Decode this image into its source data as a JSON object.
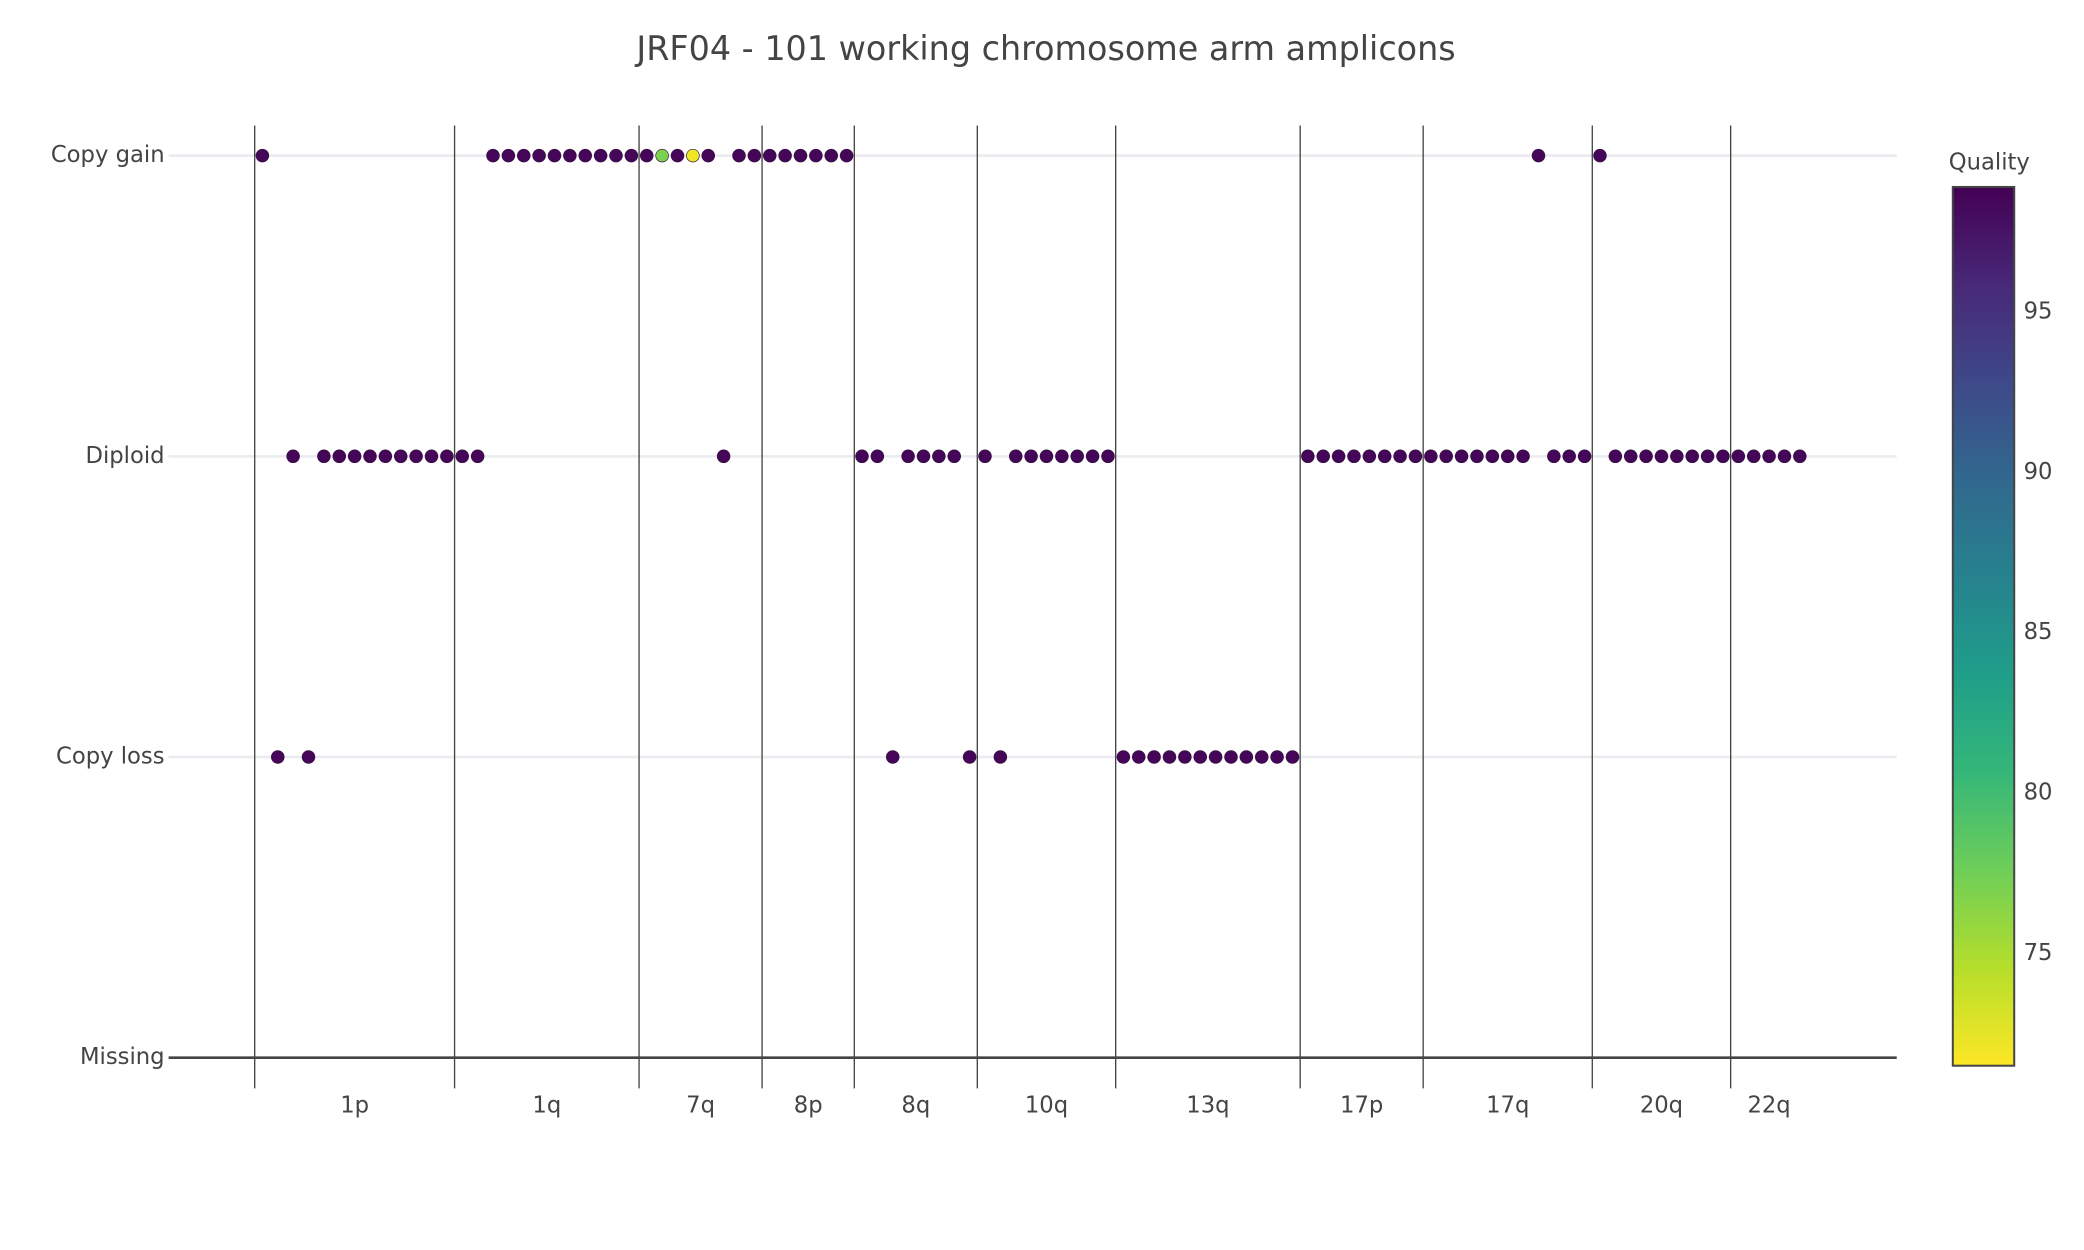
{
  "chart_data": {
    "type": "scatter",
    "title": "JRF04 - 101 working chromosome arm amplicons",
    "x": [
      0,
      1,
      2,
      3,
      4,
      5,
      6,
      7,
      8,
      9,
      10,
      11,
      12,
      13,
      14,
      15,
      16,
      17,
      18,
      19,
      20,
      21,
      22,
      23,
      24,
      25,
      26,
      27,
      28,
      29,
      30,
      31,
      32,
      33,
      34,
      35,
      36,
      37,
      38,
      39,
      40,
      41,
      42,
      43,
      44,
      45,
      46,
      47,
      48,
      49,
      50,
      51,
      52,
      53,
      54,
      55,
      56,
      57,
      58,
      59,
      60,
      61,
      62,
      63,
      64,
      65,
      66,
      67,
      68,
      69,
      70,
      71,
      72,
      73,
      74,
      75,
      76,
      77,
      78,
      79,
      80,
      81,
      82,
      83,
      84,
      85,
      86,
      87,
      88,
      89,
      90,
      91,
      92,
      93,
      94,
      95,
      96,
      97,
      98,
      99,
      100
    ],
    "y": [
      3,
      1,
      2,
      1,
      2,
      2,
      2,
      2,
      2,
      2,
      2,
      2,
      2,
      2,
      2,
      3,
      3,
      3,
      3,
      3,
      3,
      3,
      3,
      3,
      3,
      3,
      3,
      3,
      3,
      3,
      2,
      3,
      3,
      3,
      3,
      3,
      3,
      3,
      3,
      2,
      2,
      1,
      2,
      2,
      2,
      2,
      1,
      2,
      1,
      2,
      2,
      2,
      2,
      2,
      2,
      2,
      1,
      1,
      1,
      1,
      1,
      1,
      1,
      1,
      1,
      1,
      1,
      1,
      2,
      2,
      2,
      2,
      2,
      2,
      2,
      2,
      2,
      2,
      2,
      2,
      2,
      2,
      2,
      3,
      2,
      2,
      2,
      3,
      2,
      2,
      2,
      2,
      2,
      2,
      2,
      2,
      2,
      2,
      2,
      2,
      2
    ],
    "quality": [
      98.5,
      98.5,
      98.5,
      98.5,
      98.5,
      98.5,
      98.5,
      98.5,
      98.5,
      98.5,
      98.5,
      98.5,
      98.5,
      98.5,
      98.5,
      98.5,
      98.5,
      98.5,
      98.5,
      98.5,
      98.5,
      98.5,
      98.5,
      98.5,
      98.5,
      98.5,
      77,
      98.5,
      72,
      98.5,
      98.5,
      98.5,
      98.5,
      98.5,
      98.5,
      98.5,
      98.5,
      98.5,
      98.5,
      98.5,
      98.5,
      98.5,
      98.5,
      98.5,
      98.5,
      98.5,
      98.5,
      98.5,
      98.5,
      98.5,
      98.5,
      98.5,
      98.5,
      98.5,
      98.5,
      98.5,
      98.5,
      98.5,
      98.5,
      98.5,
      98.5,
      98.5,
      98.5,
      98.5,
      98.5,
      98.5,
      98.5,
      98.5,
      98.5,
      98.5,
      98.5,
      98.5,
      98.5,
      98.5,
      98.5,
      98.5,
      98.5,
      98.5,
      98.5,
      98.5,
      98.5,
      98.5,
      98.5,
      98.5,
      98.5,
      98.5,
      98.5,
      98.5,
      98.5,
      98.5,
      98.5,
      98.5,
      98.5,
      98.5,
      98.5,
      98.5,
      98.5,
      98.5,
      98.5,
      98.5,
      98.5
    ],
    "xlim": [
      -6.1,
      106.3
    ],
    "ylim": [
      0,
      3.1
    ],
    "yticks": [
      {
        "value": 0,
        "label": "Missing"
      },
      {
        "value": 1,
        "label": "Copy loss"
      },
      {
        "value": 2,
        "label": "Diploid"
      },
      {
        "value": 3,
        "label": "Copy gain"
      }
    ],
    "xticks": [
      {
        "value": 6,
        "label": "1p"
      },
      {
        "value": 18.5,
        "label": "1q"
      },
      {
        "value": 28.5,
        "label": "7q"
      },
      {
        "value": 35.5,
        "label": "8p"
      },
      {
        "value": 42.5,
        "label": "8q"
      },
      {
        "value": 51,
        "label": "10q"
      },
      {
        "value": 61.5,
        "label": "13q"
      },
      {
        "value": 71.5,
        "label": "17p"
      },
      {
        "value": 81,
        "label": "17q"
      },
      {
        "value": 91,
        "label": "20q"
      },
      {
        "value": 98,
        "label": "22q"
      }
    ],
    "boundaries": [
      -0.5,
      12.5,
      24.5,
      32.5,
      38.5,
      46.5,
      55.5,
      67.5,
      75.5,
      86.5,
      95.5
    ],
    "grid": true,
    "colorscale": "Viridis",
    "reversescale": true,
    "colorbar": {
      "title": "Quality",
      "clim": [
        71.5,
        98.9
      ],
      "ticks": [
        75,
        80,
        85,
        90,
        95
      ]
    }
  }
}
